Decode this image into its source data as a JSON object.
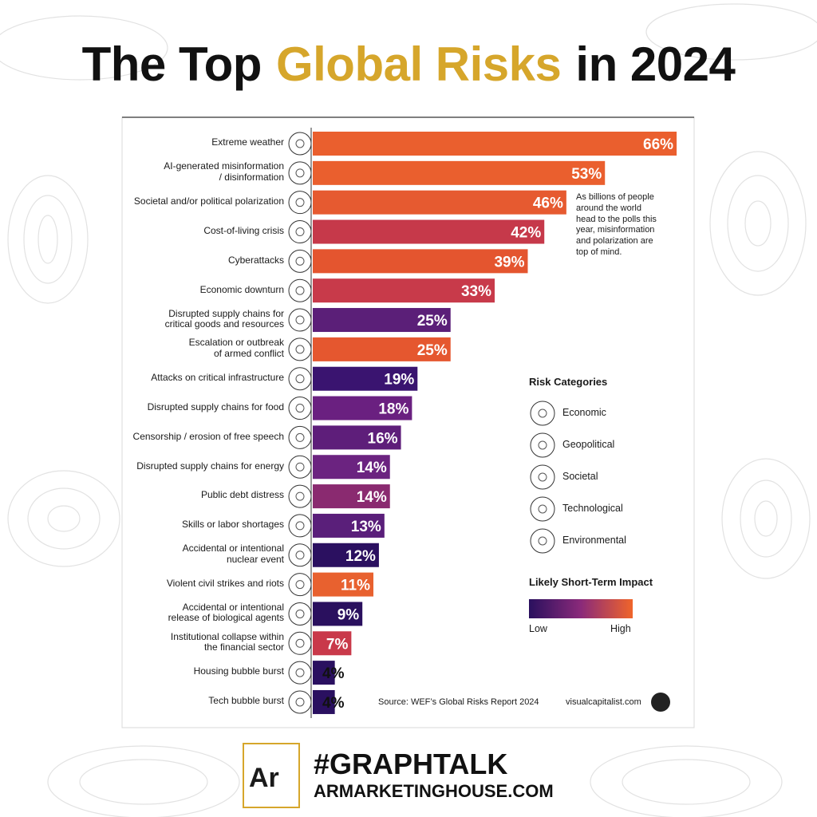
{
  "chart_data": {
    "type": "bar",
    "orientation": "horizontal",
    "title_segments": [
      {
        "text": "The Top",
        "color": "#111111"
      },
      {
        "text": "Global Risks",
        "color": "#d6a62b"
      },
      {
        "text": "in 2024",
        "color": "#111111"
      }
    ],
    "categories": [
      "Extreme weather",
      "AI-generated misinformation\n/ disinformation",
      "Societal and/or political polarization",
      "Cost-of-living crisis",
      "Cyberattacks",
      "Economic downturn",
      "Disrupted supply chains for\ncritical goods and resources",
      "Escalation or outbreak\nof armed conflict",
      "Attacks on critical infrastructure",
      "Disrupted supply chains for food",
      "Censorship / erosion of free speech",
      "Disrupted supply chains for energy",
      "Public debt distress",
      "Skills or labor shortages",
      "Accidental or intentional\nnuclear event",
      "Violent civil strikes and riots",
      "Accidental or intentional\nrelease of biological agents",
      "Institutional collapse within\nthe financial sector",
      "Housing bubble burst",
      "Tech bubble burst"
    ],
    "values": [
      66,
      53,
      46,
      42,
      39,
      33,
      25,
      25,
      19,
      18,
      16,
      14,
      14,
      13,
      12,
      11,
      9,
      7,
      4,
      4
    ],
    "value_labels": [
      "66%",
      "53%",
      "46%",
      "42%",
      "39%",
      "33%",
      "25%",
      "25%",
      "19%",
      "18%",
      "16%",
      "14%",
      "14%",
      "13%",
      "12%",
      "11%",
      "9%",
      "7%",
      "4%",
      "4%"
    ],
    "colors": [
      "#ea5f2e",
      "#ea5f2e",
      "#e65a30",
      "#c6394a",
      "#e4552f",
      "#c83a4a",
      "#5b1f78",
      "#e5572f",
      "#3a1470",
      "#6a2080",
      "#5e1e7a",
      "#6b2380",
      "#8a2a70",
      "#5a1f7a",
      "#2b1060",
      "#e8612f",
      "#2a105e",
      "#c9394a",
      "#2a1060",
      "#2a1060"
    ],
    "annotation": [
      "As billions of people",
      "around the world",
      "head to the polls this",
      "year, misinformation",
      "and polarization are",
      "top of mind."
    ],
    "legend": {
      "title": "Risk Categories",
      "items": [
        "Economic",
        "Geopolitical",
        "Societal",
        "Technological",
        "Environmental"
      ]
    },
    "impact_scale": {
      "title": "Likely Short-Term Impact",
      "low": "Low",
      "high": "High",
      "colors": [
        "#2a105e",
        "#8a2a7a",
        "#f0652a"
      ]
    },
    "source": "Source: WEF’s Global Risks Report 2024",
    "credit": "visualcapitalist.com"
  },
  "branding": {
    "logo": "Ar",
    "hashtag": "#GRAPHTALK",
    "website": "ARMARKETINGHOUSE.COM"
  }
}
